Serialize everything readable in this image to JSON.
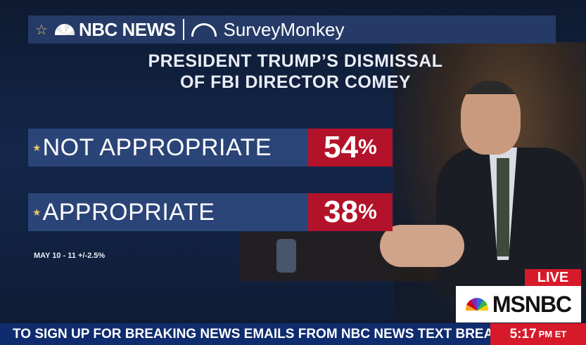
{
  "header": {
    "left_icon": "star-icon",
    "nbc_logo_icon": "nbc-peacock-icon",
    "nbc_text": "NBC NEWS",
    "partner_icon": "surveymonkey-icon",
    "partner_text": "SurveyMonkey"
  },
  "title": {
    "line1": "PRESIDENT TRUMP’S DISMISSAL",
    "line2": "OF FBI DIRECTOR COMEY"
  },
  "results": [
    {
      "label": "NOT APPROPRIATE",
      "value": "54",
      "unit": "%"
    },
    {
      "label": "APPROPRIATE",
      "value": "38",
      "unit": "%"
    }
  ],
  "note": "MAY 10 - 11 +/-2.5%",
  "live": {
    "live_text": "LIVE",
    "network": "MSNBC"
  },
  "ticker": {
    "text": "TO SIGN UP FOR BREAKING NEWS EMAILS FROM NBC NEWS TEXT BREAKIN",
    "time": "5:17",
    "time_suffix": "PM ET"
  },
  "colors": {
    "bar_blue": "#2b4478",
    "pct_red": "#b3132a",
    "ticker_blue": "#0f2c6e",
    "live_red": "#d61a2a"
  }
}
